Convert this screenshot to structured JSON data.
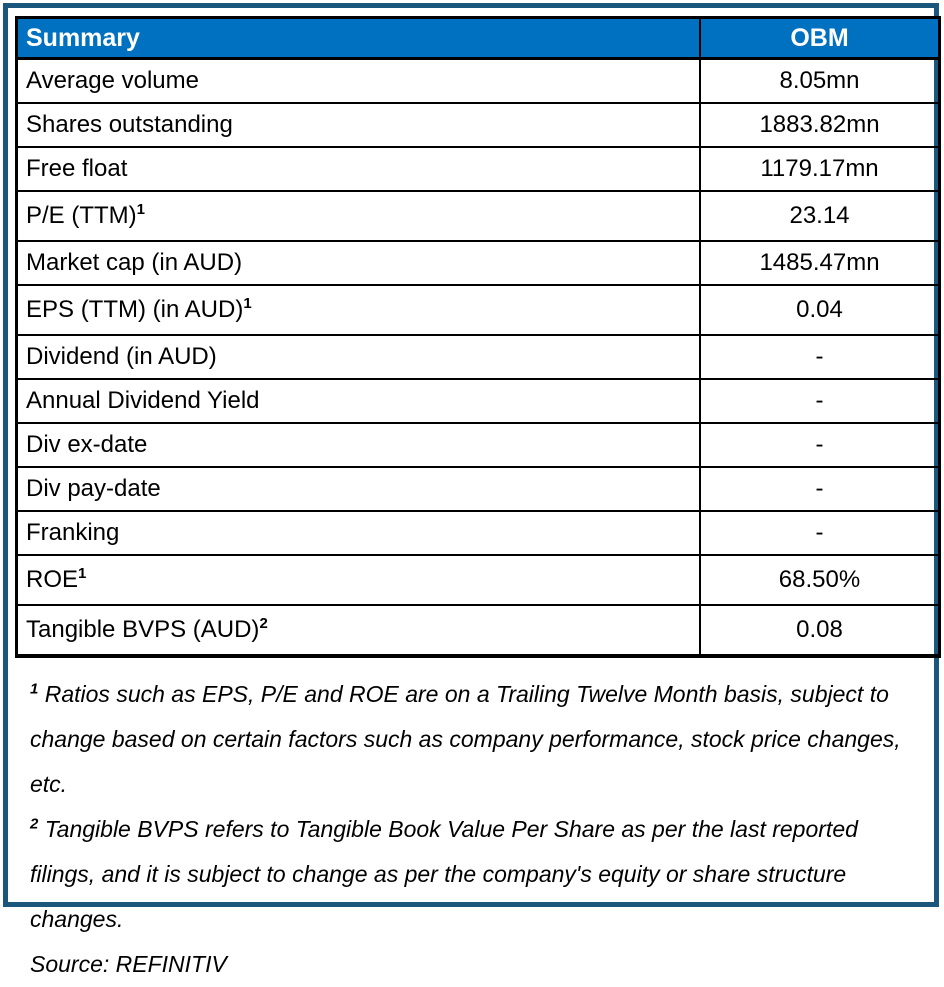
{
  "colors": {
    "frame_border": "#1B567C",
    "header_bg": "#0070C0",
    "header_text": "#FFFFFF",
    "grid": "#000000",
    "body_text": "#000000"
  },
  "table": {
    "header": {
      "summary": "Summary",
      "obm": "OBM"
    },
    "rows": [
      {
        "label": "Average volume",
        "sup": "",
        "value": "8.05mn"
      },
      {
        "label": "Shares outstanding",
        "sup": "",
        "value": "1883.82mn"
      },
      {
        "label": "Free float",
        "sup": "",
        "value": "1179.17mn"
      },
      {
        "label": "P/E (TTM)",
        "sup": "1",
        "value": "23.14"
      },
      {
        "label": "Market cap (in AUD)",
        "sup": "",
        "value": "1485.47mn"
      },
      {
        "label": "EPS (TTM) (in AUD)",
        "sup": "1",
        "value": "0.04"
      },
      {
        "label": "Dividend (in AUD)",
        "sup": "",
        "value": "-"
      },
      {
        "label": "Annual Dividend Yield",
        "sup": "",
        "value": "-"
      },
      {
        "label": "Div ex-date",
        "sup": "",
        "value": "-"
      },
      {
        "label": "Div pay-date",
        "sup": "",
        "value": "-"
      },
      {
        "label": "Franking",
        "sup": "",
        "value": "-"
      },
      {
        "label": "ROE",
        "sup": "1",
        "value": "68.50%"
      },
      {
        "label": "Tangible BVPS (AUD)",
        "sup": "2",
        "value": "0.08"
      }
    ]
  },
  "footnotes": [
    {
      "sup": "1",
      "text": "Ratios such as EPS, P/E and ROE are on a Trailing Twelve Month basis, subject to change based on certain factors such as company performance, stock price changes, etc."
    },
    {
      "sup": "2",
      "text": "Tangible BVPS refers to Tangible Book Value Per Share as per the last reported filings, and it is subject to change as per the company's equity or share structure changes."
    }
  ],
  "source": "Source: REFINITIV"
}
